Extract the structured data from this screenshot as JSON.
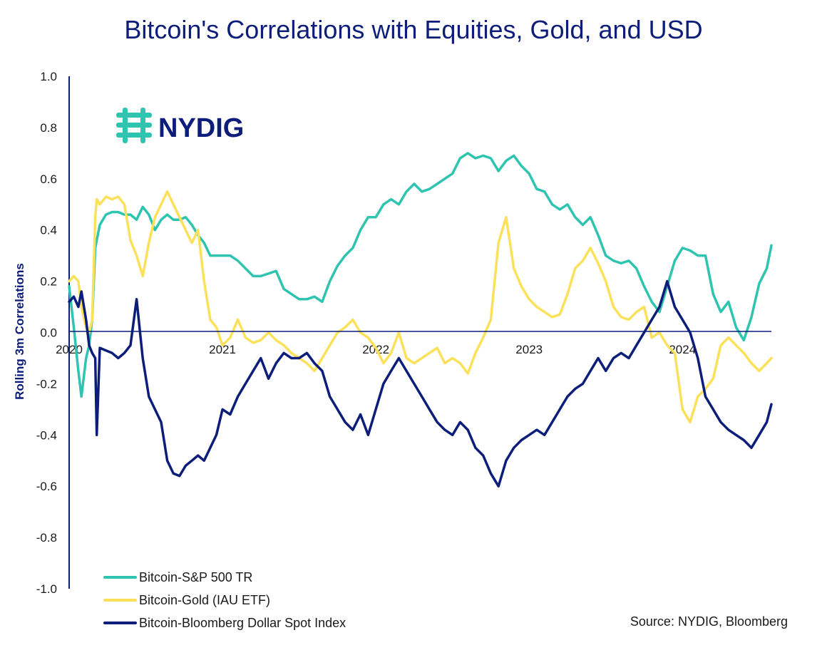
{
  "chart_data": {
    "type": "line",
    "title": "Bitcoin's Correlations with Equities, Gold, and USD",
    "ylabel": "Rolling 3m Correlations",
    "xlabel": "",
    "ylim": [
      -1.0,
      1.0
    ],
    "xlim": [
      2020.0,
      2024.58
    ],
    "yticks": [
      "1.0",
      "0.8",
      "0.6",
      "0.4",
      "0.2",
      "0.0",
      "-0.2",
      "-0.4",
      "-0.6",
      "-0.8",
      "-1.0"
    ],
    "ytick_values": [
      1.0,
      0.8,
      0.6,
      0.4,
      0.2,
      0.0,
      -0.2,
      -0.4,
      -0.6,
      -0.8,
      -1.0
    ],
    "xticks": [
      "2020",
      "2021",
      "2022",
      "2023",
      "2024"
    ],
    "xtick_values": [
      2020,
      2021,
      2022,
      2023,
      2024
    ],
    "logo_text": "NYDIG",
    "source": "Source: NYDIG, Bloomberg",
    "series": [
      {
        "name": "Bitcoin-S&P 500 TR",
        "color": "#2ec4b0",
        "x": [
          2020.0,
          2020.03,
          2020.06,
          2020.08,
          2020.11,
          2020.13,
          2020.15,
          2020.17,
          2020.18,
          2020.2,
          2020.24,
          2020.28,
          2020.32,
          2020.36,
          2020.4,
          2020.44,
          2020.48,
          2020.52,
          2020.56,
          2020.6,
          2020.64,
          2020.68,
          2020.72,
          2020.76,
          2020.8,
          2020.84,
          2020.88,
          2020.92,
          2020.96,
          2021.0,
          2021.05,
          2021.1,
          2021.15,
          2021.2,
          2021.25,
          2021.3,
          2021.35,
          2021.4,
          2021.45,
          2021.5,
          2021.55,
          2021.6,
          2021.65,
          2021.7,
          2021.75,
          2021.8,
          2021.85,
          2021.9,
          2021.95,
          2022.0,
          2022.05,
          2022.1,
          2022.15,
          2022.2,
          2022.25,
          2022.3,
          2022.35,
          2022.4,
          2022.45,
          2022.5,
          2022.55,
          2022.6,
          2022.65,
          2022.7,
          2022.75,
          2022.8,
          2022.85,
          2022.9,
          2022.95,
          2023.0,
          2023.05,
          2023.1,
          2023.15,
          2023.2,
          2023.25,
          2023.3,
          2023.35,
          2023.4,
          2023.45,
          2023.5,
          2023.55,
          2023.6,
          2023.65,
          2023.7,
          2023.75,
          2023.8,
          2023.85,
          2023.9,
          2023.95,
          2024.0,
          2024.05,
          2024.1,
          2024.15,
          2024.2,
          2024.25,
          2024.3,
          2024.35,
          2024.4,
          2024.45,
          2024.5,
          2024.55,
          2024.58
        ],
        "values": [
          0.18,
          0.02,
          -0.15,
          -0.25,
          -0.1,
          -0.05,
          0.05,
          0.33,
          0.36,
          0.42,
          0.46,
          0.47,
          0.47,
          0.46,
          0.46,
          0.44,
          0.49,
          0.46,
          0.4,
          0.44,
          0.46,
          0.44,
          0.44,
          0.45,
          0.42,
          0.38,
          0.35,
          0.3,
          0.3,
          0.3,
          0.3,
          0.28,
          0.25,
          0.22,
          0.22,
          0.23,
          0.24,
          0.17,
          0.15,
          0.13,
          0.13,
          0.14,
          0.12,
          0.2,
          0.26,
          0.3,
          0.33,
          0.4,
          0.45,
          0.45,
          0.5,
          0.52,
          0.5,
          0.55,
          0.58,
          0.55,
          0.56,
          0.58,
          0.6,
          0.62,
          0.68,
          0.7,
          0.68,
          0.69,
          0.68,
          0.63,
          0.67,
          0.69,
          0.65,
          0.62,
          0.56,
          0.55,
          0.5,
          0.48,
          0.5,
          0.45,
          0.42,
          0.45,
          0.38,
          0.3,
          0.28,
          0.27,
          0.28,
          0.25,
          0.18,
          0.12,
          0.08,
          0.18,
          0.28,
          0.33,
          0.32,
          0.3,
          0.3,
          0.15,
          0.08,
          0.12,
          0.02,
          -0.03,
          0.06,
          0.19,
          0.25,
          0.34
        ]
      },
      {
        "name": "Bitcoin-Gold (IAU ETF)",
        "color": "#fbe15a",
        "x": [
          2020.0,
          2020.03,
          2020.06,
          2020.08,
          2020.11,
          2020.13,
          2020.15,
          2020.17,
          2020.18,
          2020.2,
          2020.24,
          2020.28,
          2020.32,
          2020.36,
          2020.4,
          2020.44,
          2020.48,
          2020.52,
          2020.56,
          2020.6,
          2020.64,
          2020.68,
          2020.72,
          2020.76,
          2020.8,
          2020.84,
          2020.88,
          2020.92,
          2020.96,
          2021.0,
          2021.05,
          2021.1,
          2021.15,
          2021.2,
          2021.25,
          2021.3,
          2021.35,
          2021.4,
          2021.45,
          2021.5,
          2021.55,
          2021.6,
          2021.65,
          2021.7,
          2021.75,
          2021.8,
          2021.85,
          2021.9,
          2021.95,
          2022.0,
          2022.05,
          2022.1,
          2022.15,
          2022.2,
          2022.25,
          2022.3,
          2022.35,
          2022.4,
          2022.45,
          2022.5,
          2022.55,
          2022.6,
          2022.65,
          2022.7,
          2022.75,
          2022.8,
          2022.85,
          2022.9,
          2022.95,
          2023.0,
          2023.05,
          2023.1,
          2023.15,
          2023.2,
          2023.25,
          2023.3,
          2023.35,
          2023.4,
          2023.45,
          2023.5,
          2023.55,
          2023.6,
          2023.65,
          2023.7,
          2023.75,
          2023.8,
          2023.85,
          2023.9,
          2023.95,
          2024.0,
          2024.05,
          2024.1,
          2024.15,
          2024.2,
          2024.25,
          2024.3,
          2024.35,
          2024.4,
          2024.45,
          2024.5,
          2024.55,
          2024.58
        ],
        "values": [
          0.2,
          0.22,
          0.2,
          0.1,
          0.02,
          0.0,
          0.05,
          0.45,
          0.52,
          0.5,
          0.53,
          0.52,
          0.53,
          0.5,
          0.36,
          0.3,
          0.22,
          0.35,
          0.45,
          0.5,
          0.55,
          0.5,
          0.45,
          0.4,
          0.35,
          0.4,
          0.2,
          0.05,
          0.02,
          -0.05,
          -0.02,
          0.05,
          -0.02,
          -0.04,
          -0.03,
          0.0,
          -0.03,
          -0.05,
          -0.08,
          -0.1,
          -0.12,
          -0.15,
          -0.1,
          -0.05,
          0.0,
          0.02,
          0.05,
          0.0,
          -0.02,
          -0.06,
          -0.12,
          -0.08,
          0.0,
          -0.1,
          -0.12,
          -0.1,
          -0.08,
          -0.06,
          -0.12,
          -0.1,
          -0.12,
          -0.16,
          -0.08,
          -0.02,
          0.05,
          0.35,
          0.45,
          0.25,
          0.18,
          0.13,
          0.1,
          0.08,
          0.06,
          0.07,
          0.15,
          0.25,
          0.28,
          0.33,
          0.27,
          0.2,
          0.1,
          0.06,
          0.05,
          0.08,
          0.1,
          -0.02,
          0.0,
          -0.05,
          -0.08,
          -0.3,
          -0.35,
          -0.25,
          -0.22,
          -0.18,
          -0.05,
          -0.02,
          -0.05,
          -0.08,
          -0.12,
          -0.15,
          -0.12,
          -0.1
        ]
      },
      {
        "name": "Bitcoin-Bloomberg Dollar Spot Index",
        "color": "#0d1d7a",
        "x": [
          2020.0,
          2020.03,
          2020.06,
          2020.08,
          2020.11,
          2020.13,
          2020.15,
          2020.17,
          2020.18,
          2020.2,
          2020.24,
          2020.28,
          2020.32,
          2020.36,
          2020.4,
          2020.44,
          2020.48,
          2020.52,
          2020.56,
          2020.6,
          2020.64,
          2020.68,
          2020.72,
          2020.76,
          2020.8,
          2020.84,
          2020.88,
          2020.92,
          2020.96,
          2021.0,
          2021.05,
          2021.1,
          2021.15,
          2021.2,
          2021.25,
          2021.3,
          2021.35,
          2021.4,
          2021.45,
          2021.5,
          2021.55,
          2021.6,
          2021.65,
          2021.7,
          2021.75,
          2021.8,
          2021.85,
          2021.9,
          2021.95,
          2022.0,
          2022.05,
          2022.1,
          2022.15,
          2022.2,
          2022.25,
          2022.3,
          2022.35,
          2022.4,
          2022.45,
          2022.5,
          2022.55,
          2022.6,
          2022.65,
          2022.7,
          2022.75,
          2022.8,
          2022.85,
          2022.9,
          2022.95,
          2023.0,
          2023.05,
          2023.1,
          2023.15,
          2023.2,
          2023.25,
          2023.3,
          2023.35,
          2023.4,
          2023.45,
          2023.5,
          2023.55,
          2023.6,
          2023.65,
          2023.7,
          2023.75,
          2023.8,
          2023.85,
          2023.9,
          2023.95,
          2024.0,
          2024.05,
          2024.1,
          2024.15,
          2024.2,
          2024.25,
          2024.3,
          2024.35,
          2024.4,
          2024.45,
          2024.5,
          2024.55,
          2024.58
        ],
        "values": [
          0.12,
          0.14,
          0.1,
          0.16,
          0.05,
          -0.05,
          -0.08,
          -0.1,
          -0.4,
          -0.06,
          -0.07,
          -0.08,
          -0.1,
          -0.08,
          -0.05,
          0.13,
          -0.1,
          -0.25,
          -0.3,
          -0.35,
          -0.5,
          -0.55,
          -0.56,
          -0.52,
          -0.5,
          -0.48,
          -0.5,
          -0.45,
          -0.4,
          -0.3,
          -0.32,
          -0.25,
          -0.2,
          -0.15,
          -0.1,
          -0.18,
          -0.12,
          -0.08,
          -0.1,
          -0.1,
          -0.08,
          -0.12,
          -0.15,
          -0.25,
          -0.3,
          -0.35,
          -0.38,
          -0.32,
          -0.4,
          -0.3,
          -0.2,
          -0.15,
          -0.1,
          -0.15,
          -0.2,
          -0.25,
          -0.3,
          -0.35,
          -0.38,
          -0.4,
          -0.35,
          -0.38,
          -0.45,
          -0.48,
          -0.55,
          -0.6,
          -0.5,
          -0.45,
          -0.42,
          -0.4,
          -0.38,
          -0.4,
          -0.35,
          -0.3,
          -0.25,
          -0.22,
          -0.2,
          -0.15,
          -0.1,
          -0.15,
          -0.1,
          -0.08,
          -0.1,
          -0.05,
          0.0,
          0.05,
          0.1,
          0.2,
          0.1,
          0.05,
          0.0,
          -0.1,
          -0.25,
          -0.3,
          -0.35,
          -0.38,
          -0.4,
          -0.42,
          -0.45,
          -0.4,
          -0.35,
          -0.28
        ]
      }
    ]
  }
}
